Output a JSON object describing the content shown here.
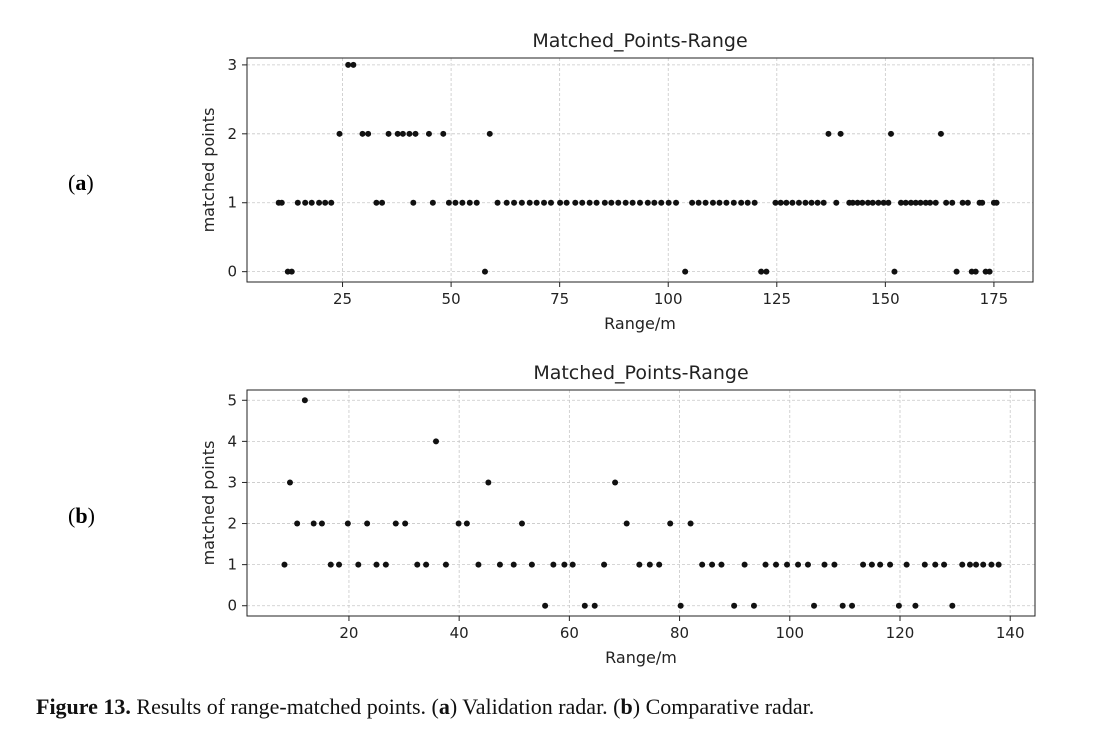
{
  "charts": [
    {
      "label_open": "(",
      "label_letter": "a",
      "label_close": ")"
    },
    {
      "label_open": "(",
      "label_letter": "b",
      "label_close": ")"
    }
  ],
  "caption": {
    "figure": "Figure 13.",
    "text": " Results of range-matched points. (",
    "a_letter": "a",
    "a_text": ") Validation radar. (",
    "b_letter": "b",
    "b_text": ") Comparative radar."
  },
  "chart_data": [
    {
      "type": "scatter",
      "title": "Matched_Points-Range",
      "xlabel": "Range/m",
      "ylabel": "matched points",
      "xlim": [
        3,
        184
      ],
      "ylim": [
        -0.15,
        3.1
      ],
      "xticks": [
        25,
        50,
        75,
        100,
        125,
        150,
        175
      ],
      "yticks": [
        0,
        1,
        2,
        3
      ],
      "grid": true,
      "color": "#111111",
      "points": [
        [
          10.3,
          1
        ],
        [
          11.0,
          1
        ],
        [
          12.4,
          0
        ],
        [
          13.3,
          0
        ],
        [
          14.7,
          1
        ],
        [
          16.4,
          1
        ],
        [
          17.9,
          1
        ],
        [
          19.6,
          1
        ],
        [
          21.0,
          1
        ],
        [
          22.4,
          1
        ],
        [
          24.3,
          2
        ],
        [
          26.3,
          3
        ],
        [
          27.5,
          3
        ],
        [
          29.6,
          2
        ],
        [
          30.9,
          2
        ],
        [
          32.8,
          1
        ],
        [
          34.1,
          1
        ],
        [
          35.6,
          2
        ],
        [
          37.7,
          2
        ],
        [
          38.9,
          2
        ],
        [
          40.4,
          2
        ],
        [
          41.3,
          1
        ],
        [
          41.8,
          2
        ],
        [
          44.9,
          2
        ],
        [
          45.8,
          1
        ],
        [
          48.2,
          2
        ],
        [
          49.5,
          1
        ],
        [
          51.0,
          1
        ],
        [
          52.6,
          1
        ],
        [
          54.3,
          1
        ],
        [
          55.9,
          1
        ],
        [
          57.8,
          0
        ],
        [
          58.9,
          2
        ],
        [
          60.7,
          1
        ],
        [
          62.8,
          1
        ],
        [
          64.5,
          1
        ],
        [
          66.3,
          1
        ],
        [
          68.1,
          1
        ],
        [
          69.7,
          1
        ],
        [
          71.4,
          1
        ],
        [
          73.0,
          1
        ],
        [
          75.1,
          1
        ],
        [
          76.6,
          1
        ],
        [
          78.6,
          1
        ],
        [
          80.2,
          1
        ],
        [
          81.9,
          1
        ],
        [
          83.5,
          1
        ],
        [
          85.4,
          1
        ],
        [
          86.9,
          1
        ],
        [
          88.5,
          1
        ],
        [
          90.2,
          1
        ],
        [
          91.8,
          1
        ],
        [
          93.5,
          1
        ],
        [
          95.3,
          1
        ],
        [
          96.8,
          1
        ],
        [
          98.4,
          1
        ],
        [
          100.1,
          1
        ],
        [
          101.8,
          1
        ],
        [
          103.9,
          0
        ],
        [
          105.5,
          1
        ],
        [
          107.0,
          1
        ],
        [
          108.6,
          1
        ],
        [
          110.3,
          1
        ],
        [
          111.8,
          1
        ],
        [
          113.4,
          1
        ],
        [
          115.1,
          1
        ],
        [
          116.8,
          1
        ],
        [
          118.3,
          1
        ],
        [
          119.9,
          1
        ],
        [
          121.4,
          0
        ],
        [
          122.6,
          0
        ],
        [
          124.7,
          1
        ],
        [
          125.9,
          1
        ],
        [
          127.2,
          1
        ],
        [
          128.6,
          1
        ],
        [
          130.1,
          1
        ],
        [
          131.6,
          1
        ],
        [
          133.0,
          1
        ],
        [
          134.4,
          1
        ],
        [
          135.8,
          1
        ],
        [
          136.9,
          2
        ],
        [
          138.7,
          1
        ],
        [
          139.7,
          2
        ],
        [
          141.7,
          1
        ],
        [
          142.5,
          1
        ],
        [
          143.6,
          1
        ],
        [
          144.7,
          1
        ],
        [
          146.0,
          1
        ],
        [
          147.1,
          1
        ],
        [
          148.4,
          1
        ],
        [
          149.6,
          1
        ],
        [
          150.7,
          1
        ],
        [
          151.3,
          2
        ],
        [
          152.1,
          0
        ],
        [
          153.6,
          1
        ],
        [
          154.7,
          1
        ],
        [
          155.9,
          1
        ],
        [
          157.0,
          1
        ],
        [
          158.1,
          1
        ],
        [
          159.3,
          1
        ],
        [
          160.3,
          1
        ],
        [
          161.6,
          1
        ],
        [
          162.8,
          2
        ],
        [
          164.0,
          1
        ],
        [
          165.4,
          1
        ],
        [
          166.4,
          0
        ],
        [
          167.8,
          1
        ],
        [
          169.0,
          1
        ],
        [
          169.9,
          0
        ],
        [
          170.8,
          0
        ],
        [
          171.7,
          1
        ],
        [
          172.3,
          1
        ],
        [
          173.1,
          0
        ],
        [
          174.0,
          0
        ],
        [
          175.0,
          1
        ],
        [
          175.6,
          1
        ]
      ]
    },
    {
      "type": "scatter",
      "title": "Matched_Points-Range",
      "xlabel": "Range/m",
      "ylabel": "matched points",
      "xlim": [
        1.5,
        144.5
      ],
      "ylim": [
        -0.25,
        5.25
      ],
      "xticks": [
        20,
        40,
        60,
        80,
        100,
        120,
        140
      ],
      "yticks": [
        0,
        1,
        2,
        3,
        4,
        5
      ],
      "grid": true,
      "color": "#111111",
      "points": [
        [
          8.3,
          1
        ],
        [
          9.3,
          3
        ],
        [
          10.6,
          2
        ],
        [
          12.0,
          5
        ],
        [
          13.6,
          2
        ],
        [
          15.1,
          2
        ],
        [
          16.7,
          1
        ],
        [
          18.2,
          1
        ],
        [
          19.8,
          2
        ],
        [
          21.7,
          1
        ],
        [
          23.3,
          2
        ],
        [
          25.0,
          1
        ],
        [
          26.7,
          1
        ],
        [
          28.5,
          2
        ],
        [
          30.2,
          2
        ],
        [
          32.4,
          1
        ],
        [
          34.0,
          1
        ],
        [
          35.8,
          4
        ],
        [
          37.6,
          1
        ],
        [
          39.9,
          2
        ],
        [
          41.4,
          2
        ],
        [
          43.5,
          1
        ],
        [
          45.3,
          3
        ],
        [
          47.4,
          1
        ],
        [
          49.9,
          1
        ],
        [
          51.4,
          2
        ],
        [
          53.2,
          1
        ],
        [
          55.6,
          0
        ],
        [
          57.1,
          1
        ],
        [
          59.1,
          1
        ],
        [
          60.6,
          1
        ],
        [
          62.8,
          0
        ],
        [
          64.6,
          0
        ],
        [
          66.3,
          1
        ],
        [
          68.3,
          3
        ],
        [
          70.4,
          2
        ],
        [
          72.7,
          1
        ],
        [
          74.6,
          1
        ],
        [
          76.3,
          1
        ],
        [
          78.3,
          2
        ],
        [
          80.2,
          0
        ],
        [
          82.0,
          2
        ],
        [
          84.1,
          1
        ],
        [
          85.9,
          1
        ],
        [
          87.6,
          1
        ],
        [
          89.9,
          0
        ],
        [
          91.8,
          1
        ],
        [
          93.5,
          0
        ],
        [
          95.6,
          1
        ],
        [
          97.5,
          1
        ],
        [
          99.5,
          1
        ],
        [
          101.5,
          1
        ],
        [
          103.3,
          1
        ],
        [
          104.4,
          0
        ],
        [
          106.3,
          1
        ],
        [
          108.1,
          1
        ],
        [
          109.6,
          0
        ],
        [
          111.3,
          0
        ],
        [
          113.3,
          1
        ],
        [
          114.9,
          1
        ],
        [
          116.4,
          1
        ],
        [
          118.2,
          1
        ],
        [
          119.8,
          0
        ],
        [
          121.2,
          1
        ],
        [
          122.8,
          0
        ],
        [
          124.5,
          1
        ],
        [
          126.4,
          1
        ],
        [
          128.0,
          1
        ],
        [
          129.5,
          0
        ],
        [
          131.3,
          1
        ],
        [
          132.7,
          1
        ],
        [
          133.8,
          1
        ],
        [
          135.1,
          1
        ],
        [
          136.6,
          1
        ],
        [
          137.9,
          1
        ]
      ]
    }
  ]
}
